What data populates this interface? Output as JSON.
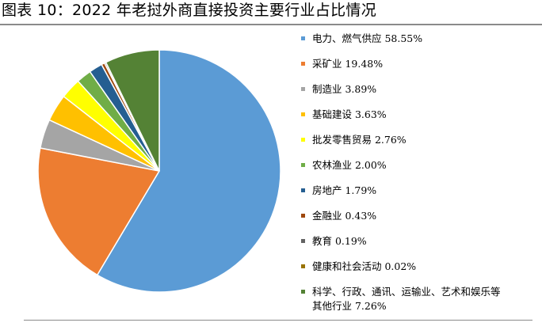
{
  "chart_data": {
    "type": "pie",
    "title": "图表 10：2022 年老挝外商直接投资主要行业占比情况",
    "slices": [
      {
        "label": "电力、燃气供应",
        "value": 58.55,
        "text": "电力、燃气供应 58.55%",
        "color": "#5b9bd5"
      },
      {
        "label": "采矿业",
        "value": 19.48,
        "text": "采矿业 19.48%",
        "color": "#ed7d31"
      },
      {
        "label": "制造业",
        "value": 3.89,
        "text": "制造业 3.89%",
        "color": "#a5a5a5"
      },
      {
        "label": "基础建设",
        "value": 3.63,
        "text": "基础建设 3.63%",
        "color": "#ffc000"
      },
      {
        "label": "批发零售贸易",
        "value": 2.76,
        "text": "批发零售贸易 2.76%",
        "color": "#ffff00"
      },
      {
        "label": "农林渔业",
        "value": 2.0,
        "text": "农林渔业 2.00%",
        "color": "#70ad47"
      },
      {
        "label": "房地产",
        "value": 1.79,
        "text": "房地产 1.79%",
        "color": "#255e91"
      },
      {
        "label": "金融业",
        "value": 0.43,
        "text": "金融业 0.43%",
        "color": "#9e480e"
      },
      {
        "label": "教育",
        "value": 0.19,
        "text": "教育 0.19%",
        "color": "#636363"
      },
      {
        "label": "健康和社会活动",
        "value": 0.02,
        "text": "健康和社会活动 0.02%",
        "color": "#997300"
      },
      {
        "label": "科学、行政、通讯、运输业、艺术和娱乐等其他行业",
        "value": 7.26,
        "text": "科学、行政、通讯、运输业、艺术和娱乐等",
        "text2": "其他行业 7.26%",
        "color": "#548235"
      }
    ],
    "legend_position": "right"
  }
}
